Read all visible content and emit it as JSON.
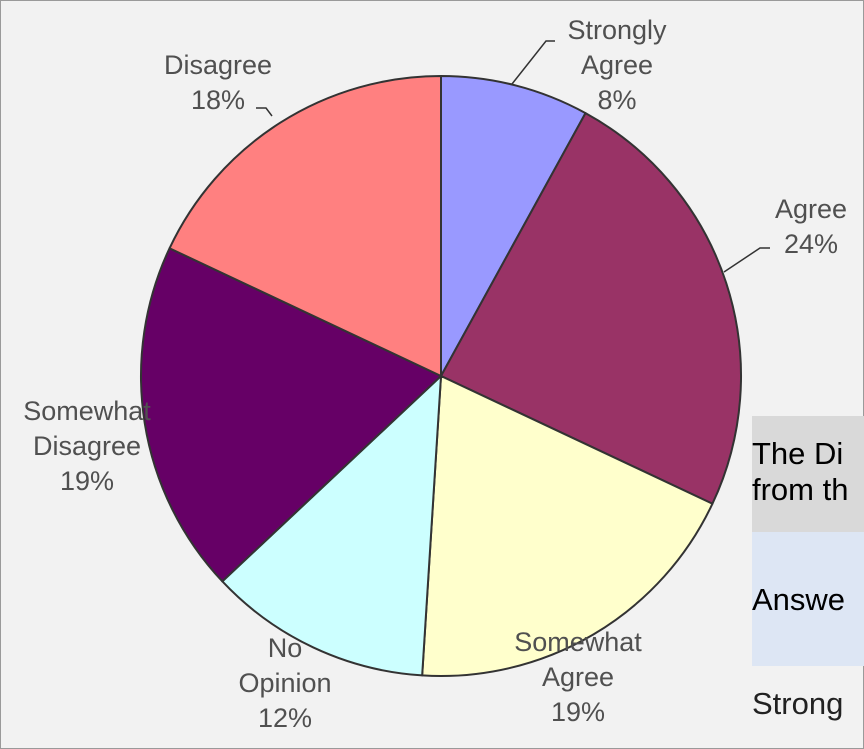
{
  "chart_data": {
    "type": "pie",
    "slices": [
      {
        "label": "Strongly Agree",
        "value": 8,
        "percent_label": "8%",
        "color": "#9999ff"
      },
      {
        "label": "Agree",
        "value": 24,
        "percent_label": "24%",
        "color": "#993366"
      },
      {
        "label": "Somewhat Agree",
        "value": 19,
        "percent_label": "19%",
        "color": "#ffffcc"
      },
      {
        "label": "No Opinion",
        "value": 12,
        "percent_label": "12%",
        "color": "#ccffff"
      },
      {
        "label": "Somewhat Disagree",
        "value": 19,
        "percent_label": "19%",
        "color": "#660066"
      },
      {
        "label": "Disagree",
        "value": 18,
        "percent_label": "18%",
        "color": "#ff8080"
      }
    ]
  },
  "overlay": {
    "question_lines": [
      "The Di",
      "from th"
    ],
    "answer_header": "Answe",
    "first_answer": "Strong"
  }
}
